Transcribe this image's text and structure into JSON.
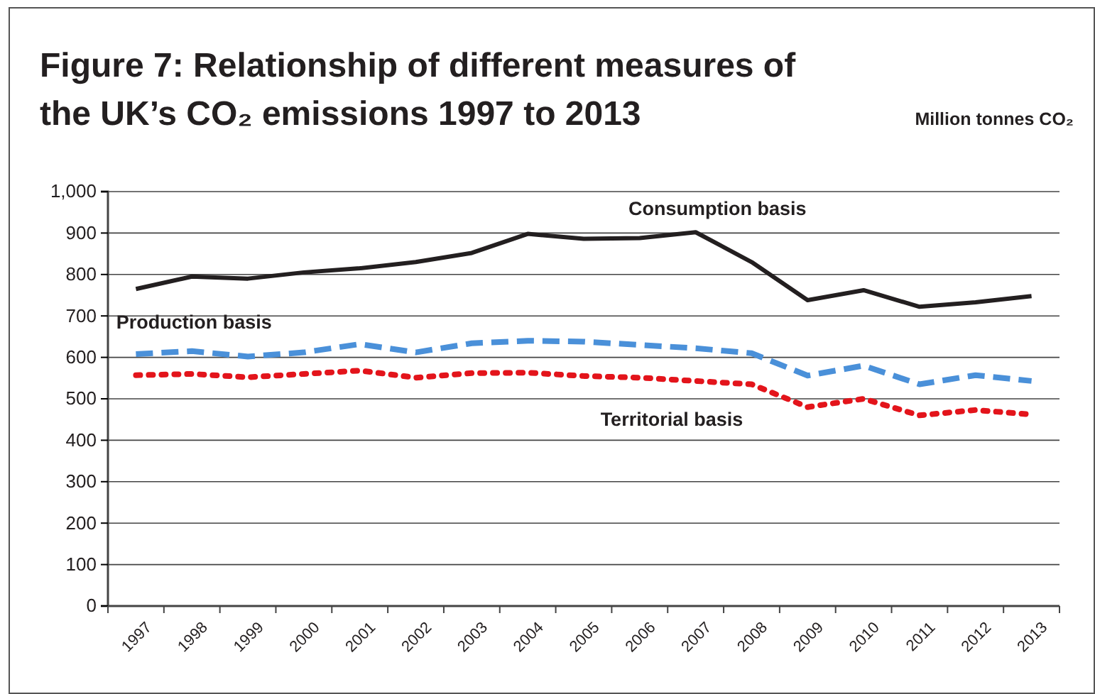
{
  "chart_data": {
    "type": "line",
    "title": "Figure 7: Relationship of different measures of the UK’s CO₂ emissions 1997 to 2013",
    "ylabel": "Million tonnes CO₂",
    "categories": [
      "1997",
      "1998",
      "1999",
      "2000",
      "2001",
      "2002",
      "2003",
      "2004",
      "2005",
      "2006",
      "2007",
      "2008",
      "2009",
      "2010",
      "2011",
      "2012",
      "2013"
    ],
    "series": [
      {
        "name": "Consumption basis",
        "color": "#231f20",
        "line_style": "solid",
        "values": [
          765,
          795,
          790,
          805,
          815,
          830,
          852,
          898,
          886,
          888,
          902,
          830,
          738,
          762,
          722,
          733,
          748
        ]
      },
      {
        "name": "Production basis",
        "color": "#4a90d9",
        "line_style": "dashed",
        "values": [
          608,
          615,
          602,
          612,
          632,
          612,
          634,
          640,
          638,
          630,
          622,
          610,
          556,
          580,
          535,
          557,
          543
        ]
      },
      {
        "name": "Territorial basis",
        "color": "#e3141b",
        "line_style": "dotted",
        "values": [
          557,
          560,
          552,
          560,
          568,
          551,
          562,
          563,
          555,
          551,
          543,
          535,
          480,
          500,
          460,
          473,
          462
        ]
      }
    ],
    "ylim": [
      0,
      1000
    ],
    "yticks": [
      0,
      100,
      200,
      300,
      400,
      500,
      600,
      700,
      800,
      900,
      {
        "value": 1000,
        "label": "1,000"
      }
    ],
    "grid": "y",
    "legend": false,
    "marker": "none"
  }
}
